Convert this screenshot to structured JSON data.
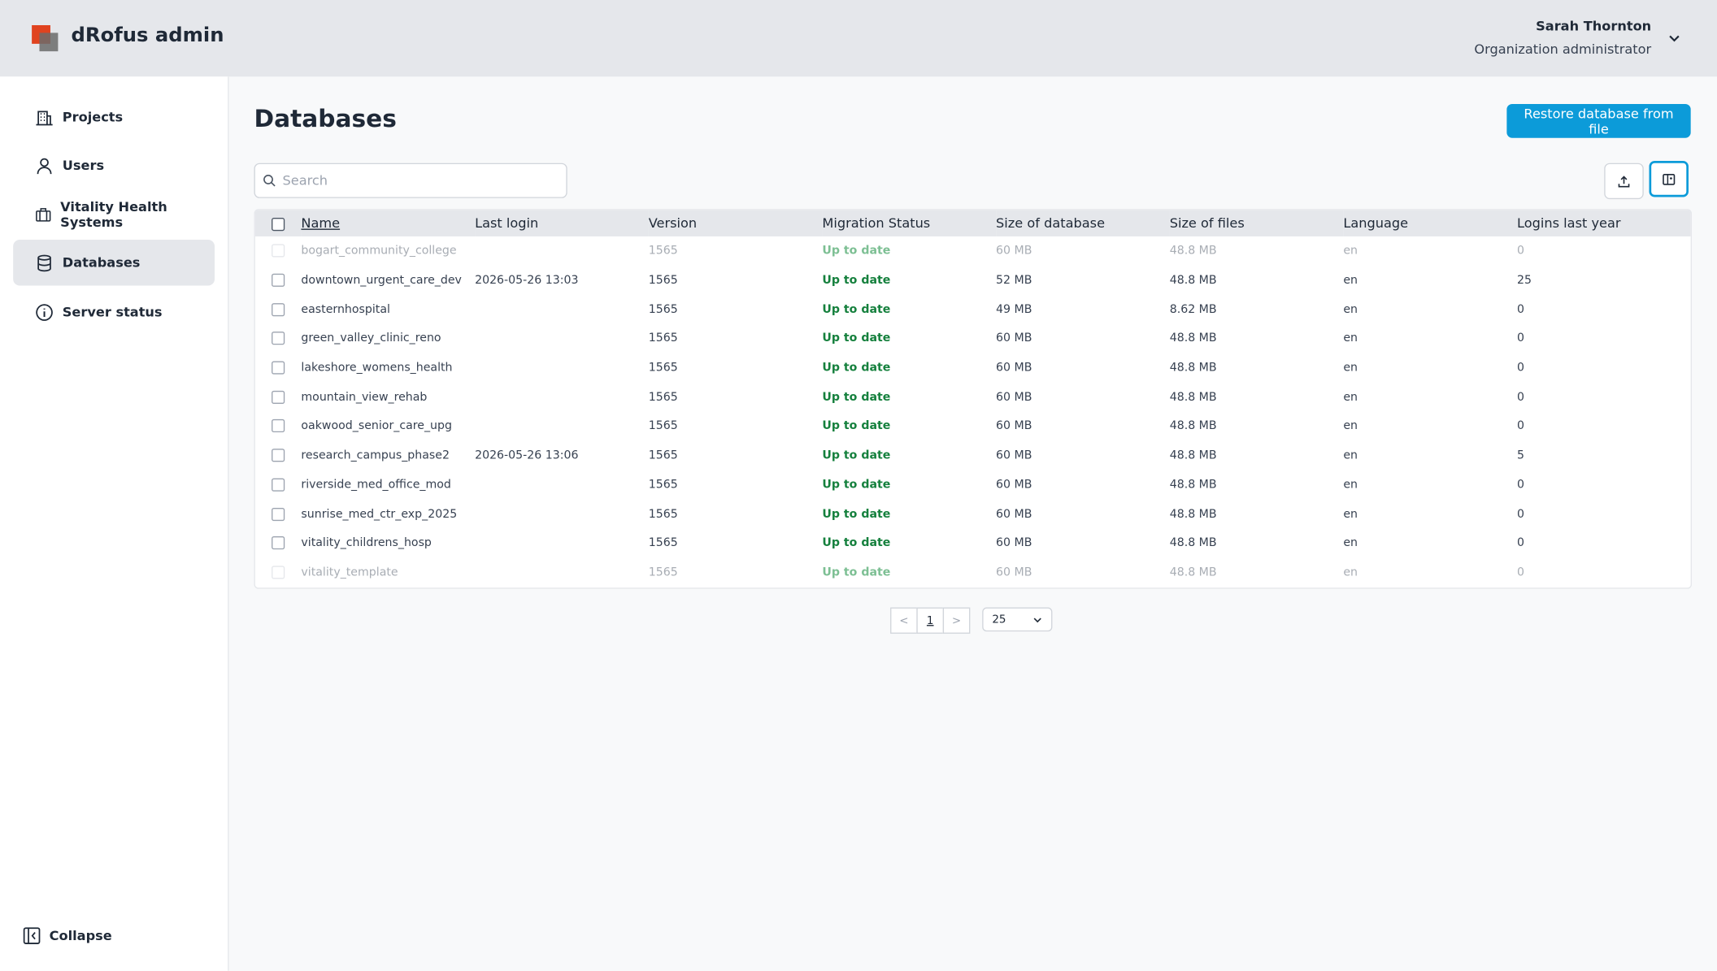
{
  "header": {
    "brand": "dRofus admin",
    "user_name": "Sarah Thornton",
    "user_role": "Organization administrator"
  },
  "sidebar": {
    "items": [
      "Projects",
      "Users",
      "Vitality Health Systems",
      "Databases",
      "Server status"
    ],
    "active": 3,
    "collapse": "Collapse"
  },
  "page": {
    "title": "Databases",
    "restore_button": "Restore database from file"
  },
  "search": {
    "placeholder": "Search"
  },
  "table": {
    "columns": [
      "Name",
      "Last login",
      "Version",
      "Migration Status",
      "Size of database",
      "Size of files",
      "Language",
      "Logins last year"
    ],
    "rows": [
      {
        "disabled": true,
        "cells": [
          "bogart_community_college",
          "",
          "1565",
          "Up to date",
          "60 MB",
          "48.8 MB",
          "en",
          "0"
        ]
      },
      {
        "cells": [
          "downtown_urgent_care_dev",
          "2026-05-26 13:03",
          "1565",
          "Up to date",
          "52 MB",
          "48.8 MB",
          "en",
          "25"
        ]
      },
      {
        "cells": [
          "easternhospital",
          "",
          "1565",
          "Up to date",
          "49 MB",
          "8.62 MB",
          "en",
          "0"
        ]
      },
      {
        "cells": [
          "green_valley_clinic_reno",
          "",
          "1565",
          "Up to date",
          "60 MB",
          "48.8 MB",
          "en",
          "0"
        ]
      },
      {
        "cells": [
          "lakeshore_womens_health",
          "",
          "1565",
          "Up to date",
          "60 MB",
          "48.8 MB",
          "en",
          "0"
        ]
      },
      {
        "cells": [
          "mountain_view_rehab",
          "",
          "1565",
          "Up to date",
          "60 MB",
          "48.8 MB",
          "en",
          "0"
        ]
      },
      {
        "cells": [
          "oakwood_senior_care_upg",
          "",
          "1565",
          "Up to date",
          "60 MB",
          "48.8 MB",
          "en",
          "0"
        ]
      },
      {
        "cells": [
          "research_campus_phase2",
          "2026-05-26 13:06",
          "1565",
          "Up to date",
          "60 MB",
          "48.8 MB",
          "en",
          "5"
        ]
      },
      {
        "cells": [
          "riverside_med_office_mod",
          "",
          "1565",
          "Up to date",
          "60 MB",
          "48.8 MB",
          "en",
          "0"
        ]
      },
      {
        "cells": [
          "sunrise_med_ctr_exp_2025",
          "",
          "1565",
          "Up to date",
          "60 MB",
          "48.8 MB",
          "en",
          "0"
        ]
      },
      {
        "cells": [
          "vitality_childrens_hosp",
          "",
          "1565",
          "Up to date",
          "60 MB",
          "48.8 MB",
          "en",
          "0"
        ]
      },
      {
        "disabled": true,
        "cells": [
          "vitality_template",
          "",
          "1565",
          "Up to date",
          "60 MB",
          "48.8 MB",
          "en",
          "0"
        ]
      }
    ]
  },
  "pagination": {
    "prev": "<",
    "page": "1",
    "next": ">",
    "page_size": "25"
  }
}
